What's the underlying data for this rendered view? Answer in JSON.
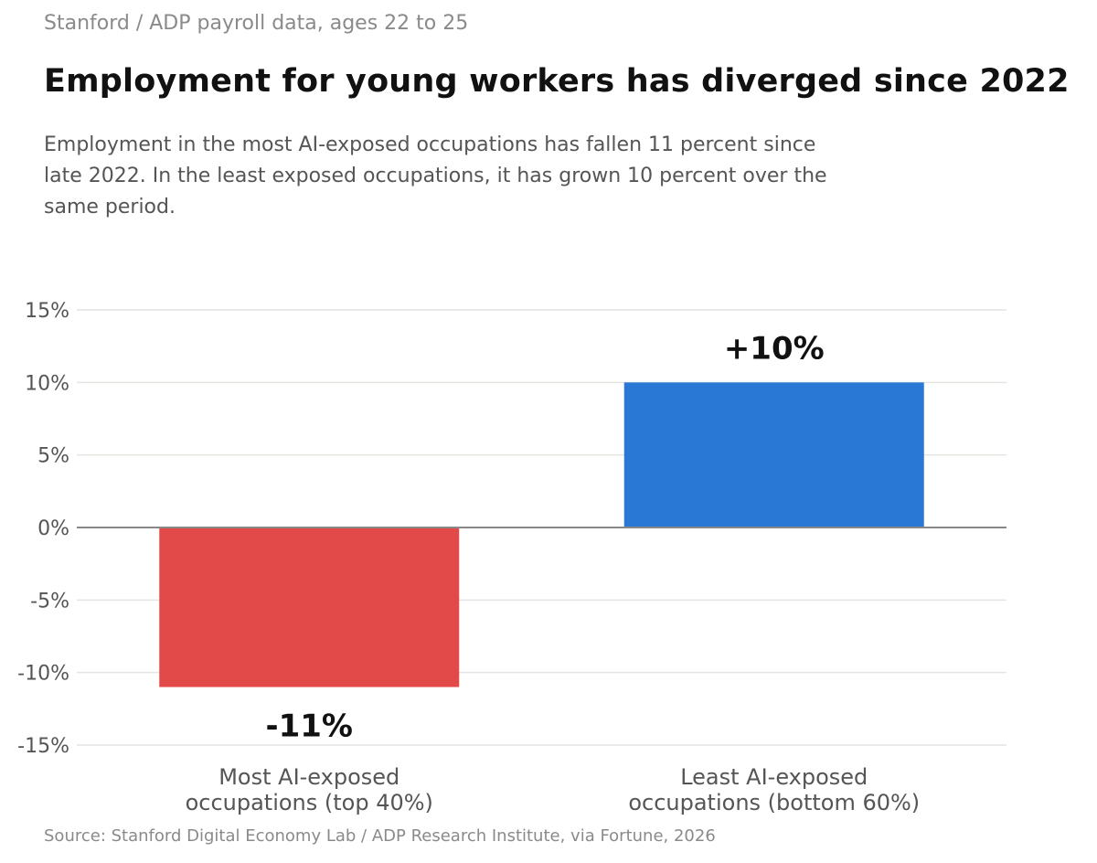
{
  "header": {
    "kicker": "Stanford / ADP payroll data, ages 22 to 25",
    "title": "Employment for young workers has diverged since 2022",
    "subtitle": "Employment in the most AI-exposed occupations has fallen 11 percent since late 2022. In the least exposed occupations, it has grown 10 percent over the same period."
  },
  "footer": {
    "source": "Source: Stanford Digital Economy Lab / ADP Research Institute, via Fortune, 2026"
  },
  "chart_data": {
    "type": "bar",
    "title": "",
    "xlabel": "",
    "ylabel": "",
    "categories": [
      [
        "Most AI-exposed",
        "occupations (top 40%)"
      ],
      [
        "Least AI-exposed",
        "occupations (bottom 60%)"
      ]
    ],
    "values": [
      -11,
      10
    ],
    "data_labels": [
      "-11%",
      "+10%"
    ],
    "colors": [
      "#e24a4a",
      "#2a78d6"
    ],
    "ylim": [
      -15,
      15
    ],
    "yticks": [
      15,
      10,
      5,
      0,
      -5,
      -10,
      -15
    ],
    "ytick_labels": [
      "15%",
      "10%",
      "5%",
      "0%",
      "-5%",
      "-10%",
      "-15%"
    ],
    "grid": true,
    "legend": "none"
  }
}
